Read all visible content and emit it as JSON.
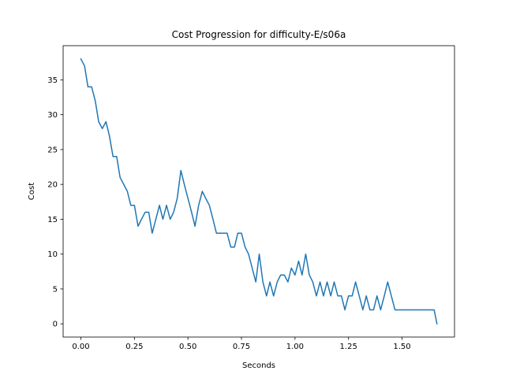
{
  "chart_data": {
    "type": "line",
    "title": "Cost Progression for difficulty-E/s06a",
    "xlabel": "Seconds",
    "ylabel": "Cost",
    "xlim": [
      -0.083,
      1.745
    ],
    "ylim": [
      -1.9,
      39.9
    ],
    "xticks": [
      0.0,
      0.25,
      0.5,
      0.75,
      1.0,
      1.25,
      1.5
    ],
    "xtick_labels": [
      "0.00",
      "0.25",
      "0.50",
      "0.75",
      "1.00",
      "1.25",
      "1.50"
    ],
    "yticks": [
      0,
      5,
      10,
      15,
      20,
      25,
      30,
      35
    ],
    "ytick_labels": [
      "0",
      "5",
      "10",
      "15",
      "20",
      "25",
      "30",
      "35"
    ],
    "grid": false,
    "legend": "none",
    "color": "#1f77b4",
    "series": [
      {
        "x": [
          0.0,
          0.017,
          0.033,
          0.05,
          0.067,
          0.083,
          0.1,
          0.117,
          0.133,
          0.15,
          0.167,
          0.183,
          0.2,
          0.217,
          0.233,
          0.25,
          0.267,
          0.283,
          0.3,
          0.317,
          0.333,
          0.35,
          0.367,
          0.383,
          0.4,
          0.417,
          0.433,
          0.45,
          0.467,
          0.483,
          0.5,
          0.517,
          0.533,
          0.55,
          0.567,
          0.583,
          0.6,
          0.617,
          0.633,
          0.65,
          0.667,
          0.683,
          0.7,
          0.717,
          0.733,
          0.75,
          0.767,
          0.783,
          0.8,
          0.817,
          0.833,
          0.85,
          0.867,
          0.883,
          0.9,
          0.917,
          0.933,
          0.95,
          0.967,
          0.983,
          1.0,
          1.017,
          1.033,
          1.05,
          1.067,
          1.083,
          1.1,
          1.117,
          1.133,
          1.15,
          1.167,
          1.183,
          1.2,
          1.217,
          1.233,
          1.25,
          1.267,
          1.283,
          1.3,
          1.317,
          1.333,
          1.35,
          1.367,
          1.383,
          1.4,
          1.417,
          1.433,
          1.45,
          1.467,
          1.483,
          1.5,
          1.517,
          1.533,
          1.55,
          1.567,
          1.583,
          1.6,
          1.617,
          1.633,
          1.65,
          1.663
        ],
        "y": [
          38,
          37,
          34,
          34,
          32,
          29,
          28,
          29,
          27,
          24,
          24,
          21,
          20,
          19,
          17,
          17,
          14,
          15,
          16,
          16,
          13,
          15,
          17,
          15,
          17,
          15,
          16,
          18,
          22,
          20,
          18,
          16,
          14,
          17,
          19,
          18,
          17,
          15,
          13,
          13,
          13,
          13,
          11,
          11,
          13,
          13,
          11,
          10,
          8,
          6,
          10,
          6,
          4,
          6,
          4,
          6,
          7,
          7,
          6,
          8,
          7,
          9,
          7,
          10,
          7,
          6,
          4,
          6,
          4,
          6,
          4,
          6,
          4,
          4,
          2,
          4,
          4,
          6,
          4,
          2,
          4,
          2,
          2,
          4,
          2,
          4,
          6,
          4,
          2,
          2,
          2,
          2,
          2,
          2,
          2,
          2,
          2,
          2,
          2,
          2,
          0
        ]
      }
    ]
  }
}
